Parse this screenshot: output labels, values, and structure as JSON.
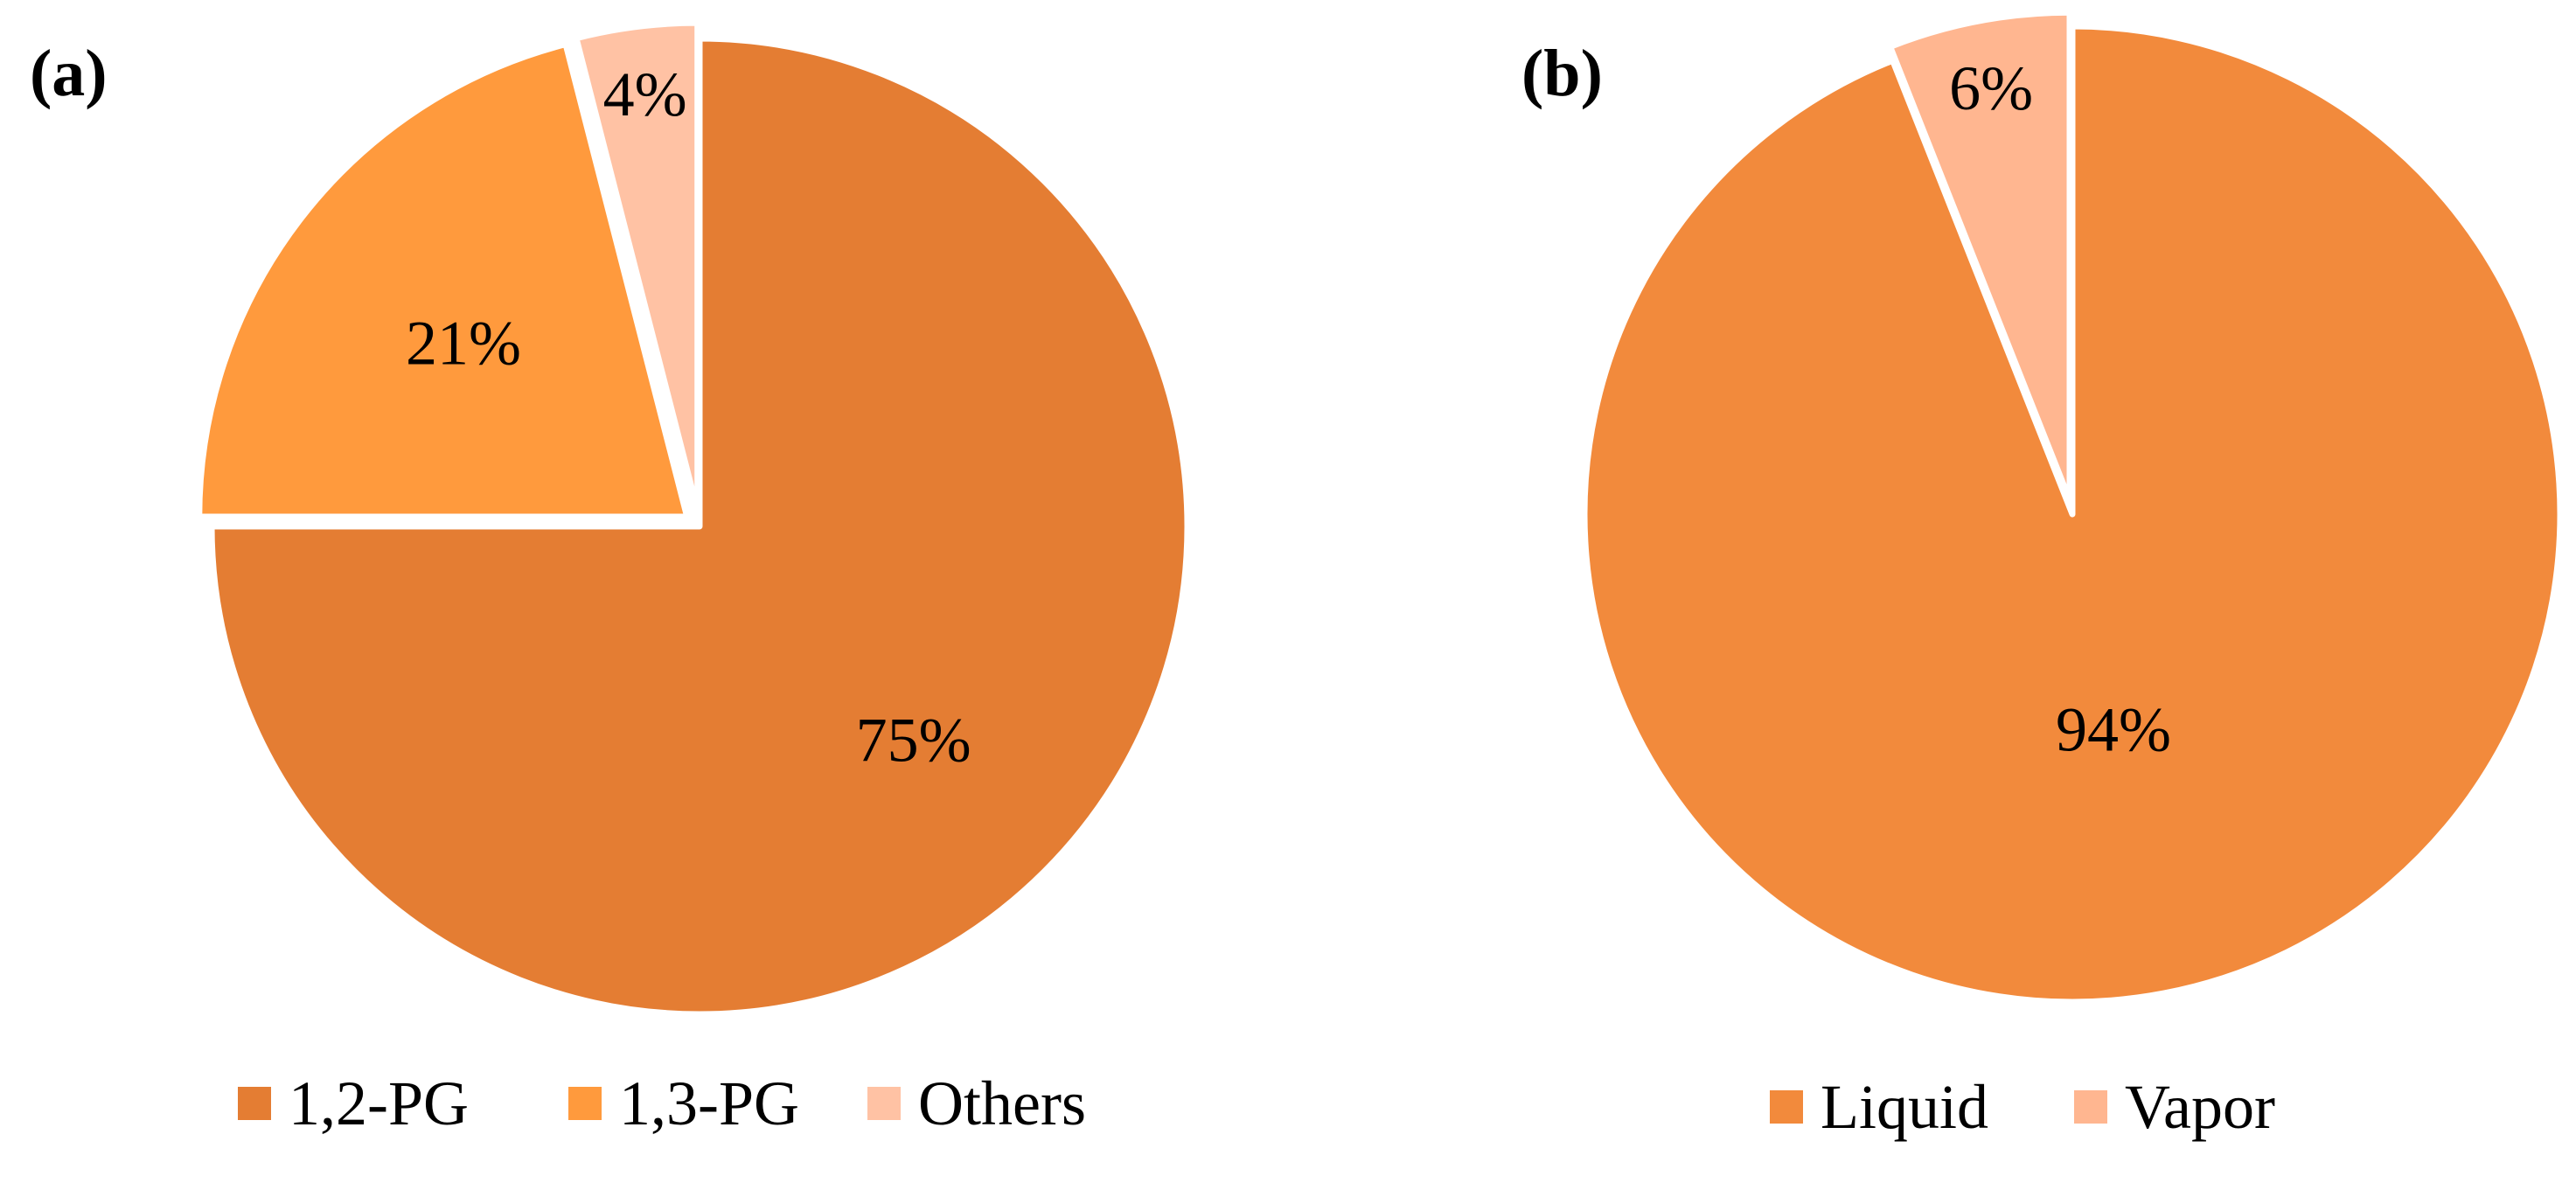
{
  "chart_data": [
    {
      "type": "pie",
      "panel_label": "(a)",
      "title": "",
      "categories": [
        "1,2-PG",
        "1,3-PG",
        "Others"
      ],
      "values": [
        75,
        21,
        4
      ],
      "value_labels": [
        "75%",
        "21%",
        "4%"
      ],
      "colors": [
        "#E47D33",
        "#FF9A3D",
        "#FFC2A4"
      ],
      "exploded": [
        false,
        true,
        true
      ],
      "legend": {
        "placement": "bottom",
        "entries": [
          "1,2-PG",
          "1,3-PG",
          "Others"
        ]
      }
    },
    {
      "type": "pie",
      "panel_label": "(b)",
      "title": "",
      "categories": [
        "Liquid",
        "Vapor"
      ],
      "values": [
        94,
        6
      ],
      "value_labels": [
        "94%",
        "6%"
      ],
      "colors": [
        "#F28A3C",
        "#FFB690"
      ],
      "exploded": [
        false,
        true
      ],
      "legend": {
        "placement": "bottom",
        "entries": [
          "Liquid",
          "Vapor"
        ]
      }
    }
  ]
}
